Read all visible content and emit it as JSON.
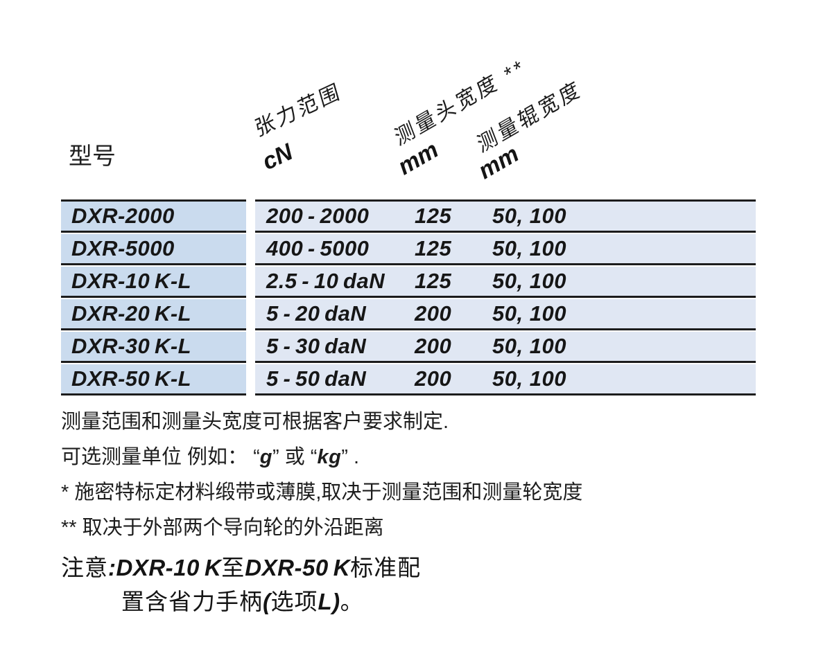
{
  "table": {
    "model_header": "型号",
    "columns": [
      {
        "label": "张力范围",
        "unit": "cN"
      },
      {
        "label": "测量头宽度 **",
        "unit": "mm"
      },
      {
        "label": "测量辊宽度",
        "unit": "mm"
      }
    ],
    "rows": [
      {
        "model": "DXR-2000",
        "tension": "200 - 2000",
        "head_width": "125",
        "roller_width": "50, 100"
      },
      {
        "model": "DXR-5000",
        "tension": "400 - 5000",
        "head_width": "125",
        "roller_width": "50, 100"
      },
      {
        "model": "DXR-10 K-L",
        "tension": "2.5 - 10 daN",
        "head_width": "125",
        "roller_width": "50, 100"
      },
      {
        "model": "DXR-20 K-L",
        "tension": "5 - 20 daN",
        "head_width": "200",
        "roller_width": "50, 100"
      },
      {
        "model": "DXR-30 K-L",
        "tension": "5 - 30 daN",
        "head_width": "200",
        "roller_width": "50, 100"
      },
      {
        "model": "DXR-50 K-L",
        "tension": "5 - 50 daN",
        "head_width": "200",
        "roller_width": "50, 100"
      }
    ]
  },
  "footnotes": {
    "line1": "测量范围和测量头宽度可根据客户要求制定.",
    "line2_segments": [
      {
        "t": "可选测量单位 例如： “",
        "s": ""
      },
      {
        "t": "g",
        "s": "bi"
      },
      {
        "t": "”",
        "s": ""
      },
      {
        "t": " 或 “",
        "s": ""
      },
      {
        "t": "kg",
        "s": "bi"
      },
      {
        "t": "”",
        "s": ""
      },
      {
        "t": " .",
        "s": ""
      }
    ],
    "line3": "* 施密特标定材料缎带或薄膜,取决于测量范围和测量轮宽度",
    "line4": "** 取决于外部两个导向轮的外沿距离"
  },
  "note": {
    "line1_segments": [
      {
        "t": "注意",
        "s": ""
      },
      {
        "t": ":DXR-10 K",
        "s": "bi"
      },
      {
        "t": "至",
        "s": ""
      },
      {
        "t": "DXR-50 K",
        "s": "bi"
      },
      {
        "t": "标准配",
        "s": ""
      }
    ],
    "line2_segments": [
      {
        "t": "置含省力手柄",
        "s": ""
      },
      {
        "t": "(",
        "s": "bi"
      },
      {
        "t": "选项",
        "s": ""
      },
      {
        "t": "L)",
        "s": "bi"
      },
      {
        "t": "。",
        "s": ""
      }
    ]
  },
  "colors": {
    "model_column_bg": "#cadbee",
    "data_column_bg": "#e0e7f3",
    "rule": "#1c1c1c"
  }
}
